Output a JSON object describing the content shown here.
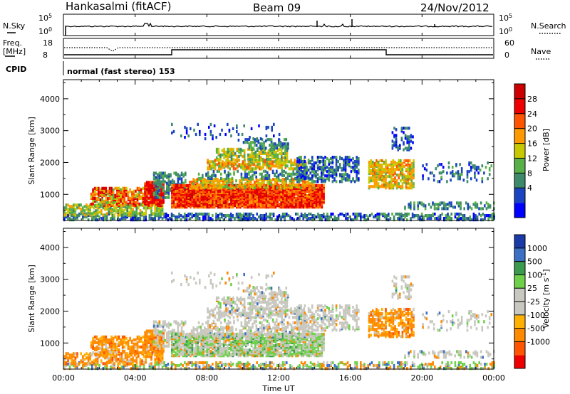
{
  "header": {
    "station": "Hankasalmi (fitACF)",
    "beam": "Beam 09",
    "date": "24/Nov/2012"
  },
  "strip_labels": {
    "nsky": "N.Sky",
    "nsearch": "N.Search",
    "freq_line1": "Freq.",
    "freq_line2": "[MHz]",
    "nave": "Nave",
    "cpid": "CPID",
    "cpid_text": "normal (fast stereo) 153",
    "noise_ticks_left": [
      "10^5",
      "10^0"
    ],
    "noise_ticks_right": [
      "10^5",
      "10^0"
    ],
    "freq_ticks": [
      "18",
      "8"
    ],
    "nave_ticks": [
      "60",
      "0"
    ]
  },
  "colors": {
    "power_scale": [
      "#0000ff",
      "#1a44c2",
      "#3d8a6a",
      "#58b048",
      "#c7c800",
      "#ff9900",
      "#ff5500",
      "#ee0000",
      "#cc0000"
    ],
    "velocity_scale": [
      "#ee0000",
      "#ff5500",
      "#ff8a00",
      "#ffb000",
      "#c8c8c0",
      "#c8c8c0",
      "#6fd04a",
      "#3a9a4e",
      "#3b70c4",
      "#1a3aa8"
    ]
  },
  "chart_data": [
    {
      "type": "heatmap",
      "name": "power",
      "xlabel": "",
      "ylabel": "Slant Range [km]",
      "x_ticks": [
        "00:00",
        "04:00",
        "08:00",
        "12:00",
        "16:00",
        "20:00",
        "00:00"
      ],
      "y_ticks": [
        "4000",
        "3000",
        "2000",
        "1000"
      ],
      "xlim": [
        0,
        24
      ],
      "ylim": [
        180,
        4600
      ],
      "colorbar": {
        "label": "Power [dB]",
        "ticks": [
          "28",
          "24",
          "20",
          "16",
          "12",
          "8",
          "4"
        ]
      }
    },
    {
      "type": "heatmap",
      "name": "velocity",
      "xlabel": "Time UT",
      "ylabel": "Slant Range [km]",
      "x_ticks": [
        "00:00",
        "04:00",
        "08:00",
        "12:00",
        "16:00",
        "20:00",
        "00:00"
      ],
      "y_ticks": [
        "4000",
        "3000",
        "2000",
        "1000"
      ],
      "xlim": [
        0,
        24
      ],
      "ylim": [
        180,
        4600
      ],
      "colorbar": {
        "label": "Velocity [m s^-1]",
        "ticks": [
          "1000",
          "500",
          "100",
          "25",
          "-25",
          "-100",
          "-500",
          "-1000"
        ]
      }
    }
  ]
}
